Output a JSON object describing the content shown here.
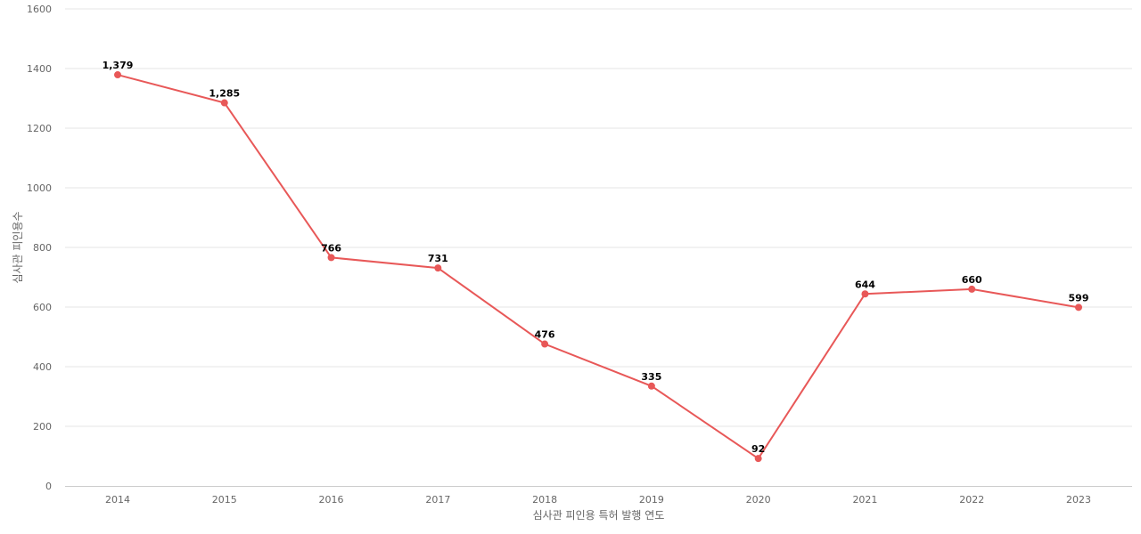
{
  "chart_data": {
    "type": "line",
    "xlabel": "심사관 피인용 특허 발행 연도",
    "ylabel": "심사관 피인용수",
    "ylim": [
      0,
      1600
    ],
    "yticks": [
      0,
      200,
      400,
      600,
      800,
      1000,
      1200,
      1400,
      1600
    ],
    "grid": true,
    "color": "#e85858",
    "categories": [
      "2014",
      "2015",
      "2016",
      "2017",
      "2018",
      "2019",
      "2020",
      "2021",
      "2022",
      "2023"
    ],
    "values": [
      1379,
      1285,
      766,
      731,
      476,
      335,
      92,
      644,
      660,
      599
    ],
    "data_labels": [
      "1,379",
      "1,285",
      "766",
      "731",
      "476",
      "335",
      "92",
      "644",
      "660",
      "599"
    ]
  }
}
